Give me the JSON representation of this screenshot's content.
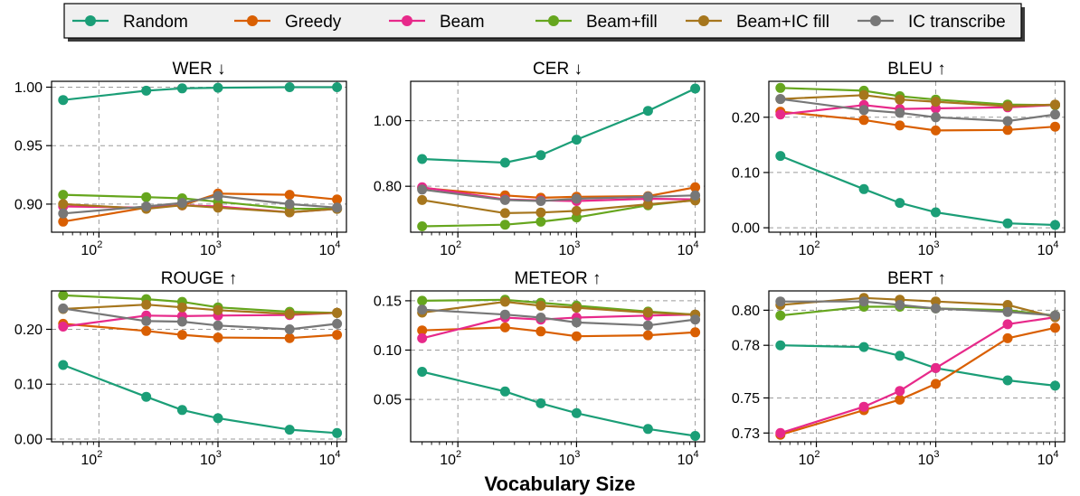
{
  "legend": {
    "location": "top",
    "entries": [
      {
        "name": "Random",
        "color": "#1b9e77"
      },
      {
        "name": "Greedy",
        "color": "#d95f02"
      },
      {
        "name": "Beam",
        "color": "#e7298a"
      },
      {
        "name": "Beam+fill",
        "color": "#66a61e"
      },
      {
        "name": "Beam+IC fill",
        "color": "#a6761d"
      },
      {
        "name": "IC transcribe",
        "color": "#777777"
      }
    ]
  },
  "xlabel": "Vocabulary Size",
  "chart_data": [
    {
      "type": "line",
      "title": "WER ↓",
      "xscale": "log",
      "xlim": [
        40,
        12000
      ],
      "ylim": [
        0.876,
        1.005
      ],
      "yticks": [
        0.9,
        0.95,
        1.0
      ],
      "ytick_labels": [
        "0.90",
        "0.95",
        "1.00"
      ],
      "xticks": [
        100,
        1000,
        10000
      ],
      "xtick_labels": [
        "10",
        "10",
        "10"
      ],
      "xtick_exponents": [
        "2",
        "3",
        "4"
      ],
      "x": [
        50,
        250,
        500,
        1000,
        4000,
        10000
      ],
      "grid": true,
      "series": [
        {
          "name": "Random",
          "color": "#1b9e77",
          "values": [
            0.989,
            0.997,
            0.999,
            0.9995,
            1.0,
            1.0
          ]
        },
        {
          "name": "Greedy",
          "color": "#d95f02",
          "values": [
            0.885,
            0.897,
            0.899,
            0.909,
            0.908,
            0.904
          ]
        },
        {
          "name": "Beam",
          "color": "#e7298a",
          "values": [
            0.898,
            0.897,
            0.899,
            0.898,
            0.893,
            0.896
          ]
        },
        {
          "name": "Beam+fill",
          "color": "#66a61e",
          "values": [
            0.908,
            0.906,
            0.905,
            0.902,
            0.896,
            0.896
          ]
        },
        {
          "name": "Beam+IC fill",
          "color": "#a6761d",
          "values": [
            0.9,
            0.896,
            0.899,
            0.897,
            0.893,
            0.896
          ]
        },
        {
          "name": "IC transcribe",
          "color": "#777777",
          "values": [
            0.892,
            0.898,
            0.901,
            0.907,
            0.9,
            0.897
          ]
        }
      ]
    },
    {
      "type": "line",
      "title": "CER ↓",
      "xscale": "log",
      "xlim": [
        40,
        12000
      ],
      "ylim": [
        0.66,
        1.12
      ],
      "yticks": [
        0.8,
        1.0
      ],
      "ytick_labels": [
        "0.80",
        "1.00"
      ],
      "xticks": [
        100,
        1000,
        10000
      ],
      "xtick_labels": [
        "10",
        "10",
        "10"
      ],
      "xtick_exponents": [
        "2",
        "3",
        "4"
      ],
      "x": [
        50,
        250,
        500,
        1000,
        4000,
        10000
      ],
      "grid": true,
      "series": [
        {
          "name": "Random",
          "color": "#1b9e77",
          "values": [
            0.883,
            0.872,
            0.895,
            0.942,
            1.03,
            1.098
          ]
        },
        {
          "name": "Greedy",
          "color": "#d95f02",
          "values": [
            0.795,
            0.772,
            0.765,
            0.768,
            0.77,
            0.797
          ]
        },
        {
          "name": "Beam",
          "color": "#e7298a",
          "values": [
            0.797,
            0.76,
            0.757,
            0.755,
            0.762,
            0.76
          ]
        },
        {
          "name": "Beam+fill",
          "color": "#66a61e",
          "values": [
            0.678,
            0.683,
            0.692,
            0.705,
            0.742,
            0.758
          ]
        },
        {
          "name": "Beam+IC fill",
          "color": "#a6761d",
          "values": [
            0.758,
            0.718,
            0.72,
            0.725,
            0.745,
            0.757
          ]
        },
        {
          "name": "IC transcribe",
          "color": "#777777",
          "values": [
            0.79,
            0.758,
            0.755,
            0.762,
            0.768,
            0.772
          ]
        }
      ]
    },
    {
      "type": "line",
      "title": "BLEU ↑",
      "xscale": "log",
      "xlim": [
        40,
        12000
      ],
      "ylim": [
        -0.008,
        0.265
      ],
      "yticks": [
        0.0,
        0.1,
        0.2
      ],
      "ytick_labels": [
        "0.00",
        "0.10",
        "0.20"
      ],
      "xticks": [
        100,
        1000,
        10000
      ],
      "xtick_labels": [
        "10",
        "10",
        "10"
      ],
      "xtick_exponents": [
        "2",
        "3",
        "4"
      ],
      "x": [
        50,
        250,
        500,
        1000,
        4000,
        10000
      ],
      "grid": true,
      "series": [
        {
          "name": "Random",
          "color": "#1b9e77",
          "values": [
            0.13,
            0.07,
            0.045,
            0.028,
            0.008,
            0.005
          ]
        },
        {
          "name": "Greedy",
          "color": "#d95f02",
          "values": [
            0.21,
            0.195,
            0.185,
            0.176,
            0.177,
            0.183
          ]
        },
        {
          "name": "Beam",
          "color": "#e7298a",
          "values": [
            0.205,
            0.222,
            0.215,
            0.216,
            0.218,
            0.222
          ]
        },
        {
          "name": "Beam+fill",
          "color": "#66a61e",
          "values": [
            0.253,
            0.248,
            0.238,
            0.232,
            0.223,
            0.222
          ]
        },
        {
          "name": "Beam+IC fill",
          "color": "#a6761d",
          "values": [
            0.233,
            0.24,
            0.232,
            0.228,
            0.22,
            0.223
          ]
        },
        {
          "name": "IC transcribe",
          "color": "#777777",
          "values": [
            0.233,
            0.213,
            0.208,
            0.2,
            0.193,
            0.205
          ]
        }
      ]
    },
    {
      "type": "line",
      "title": "ROUGE ↑",
      "xscale": "log",
      "xlim": [
        40,
        12000
      ],
      "ylim": [
        -0.005,
        0.27
      ],
      "yticks": [
        0.0,
        0.1,
        0.2
      ],
      "ytick_labels": [
        "0.00",
        "0.10",
        "0.20"
      ],
      "xticks": [
        100,
        1000,
        10000
      ],
      "xtick_labels": [
        "10",
        "10",
        "10"
      ],
      "xtick_exponents": [
        "2",
        "3",
        "4"
      ],
      "x": [
        50,
        250,
        500,
        1000,
        4000,
        10000
      ],
      "grid": true,
      "series": [
        {
          "name": "Random",
          "color": "#1b9e77",
          "values": [
            0.135,
            0.077,
            0.053,
            0.038,
            0.017,
            0.011
          ]
        },
        {
          "name": "Greedy",
          "color": "#d95f02",
          "values": [
            0.21,
            0.197,
            0.19,
            0.185,
            0.184,
            0.19
          ]
        },
        {
          "name": "Beam",
          "color": "#e7298a",
          "values": [
            0.205,
            0.225,
            0.224,
            0.225,
            0.226,
            0.23
          ]
        },
        {
          "name": "Beam+fill",
          "color": "#66a61e",
          "values": [
            0.262,
            0.255,
            0.25,
            0.24,
            0.232,
            0.23
          ]
        },
        {
          "name": "Beam+IC fill",
          "color": "#a6761d",
          "values": [
            0.237,
            0.245,
            0.24,
            0.235,
            0.228,
            0.23
          ]
        },
        {
          "name": "IC transcribe",
          "color": "#777777",
          "values": [
            0.238,
            0.215,
            0.214,
            0.207,
            0.2,
            0.21
          ]
        }
      ]
    },
    {
      "type": "line",
      "title": "METEOR ↑",
      "xscale": "log",
      "xlim": [
        40,
        12000
      ],
      "ylim": [
        0.007,
        0.16
      ],
      "yticks": [
        0.05,
        0.1,
        0.15
      ],
      "ytick_labels": [
        "0.05",
        "0.10",
        "0.15"
      ],
      "xticks": [
        100,
        1000,
        10000
      ],
      "xtick_labels": [
        "10",
        "10",
        "10"
      ],
      "xtick_exponents": [
        "2",
        "3",
        "4"
      ],
      "x": [
        50,
        250,
        500,
        1000,
        4000,
        10000
      ],
      "grid": true,
      "series": [
        {
          "name": "Random",
          "color": "#1b9e77",
          "values": [
            0.078,
            0.058,
            0.046,
            0.036,
            0.02,
            0.013
          ]
        },
        {
          "name": "Greedy",
          "color": "#d95f02",
          "values": [
            0.12,
            0.123,
            0.119,
            0.114,
            0.115,
            0.118
          ]
        },
        {
          "name": "Beam",
          "color": "#e7298a",
          "values": [
            0.112,
            0.133,
            0.131,
            0.133,
            0.135,
            0.136
          ]
        },
        {
          "name": "Beam+fill",
          "color": "#66a61e",
          "values": [
            0.15,
            0.151,
            0.148,
            0.145,
            0.139,
            0.136
          ]
        },
        {
          "name": "Beam+IC fill",
          "color": "#a6761d",
          "values": [
            0.138,
            0.149,
            0.145,
            0.143,
            0.138,
            0.136
          ]
        },
        {
          "name": "IC transcribe",
          "color": "#777777",
          "values": [
            0.141,
            0.136,
            0.133,
            0.128,
            0.125,
            0.131
          ]
        }
      ]
    },
    {
      "type": "line",
      "title": "BERT ↑",
      "xscale": "log",
      "xlim": [
        40,
        12000
      ],
      "ylim": [
        0.725,
        0.811
      ],
      "yticks": [
        0.73,
        0.75,
        0.78,
        0.8
      ],
      "ytick_labels": [
        "0.73",
        "0.75",
        "0.78",
        "0.80"
      ],
      "xticks": [
        100,
        1000,
        10000
      ],
      "xtick_labels": [
        "10",
        "10",
        "10"
      ],
      "xtick_exponents": [
        "2",
        "3",
        "4"
      ],
      "x": [
        50,
        250,
        500,
        1000,
        4000,
        10000
      ],
      "grid": true,
      "series": [
        {
          "name": "Random",
          "color": "#1b9e77",
          "values": [
            0.78,
            0.779,
            0.774,
            0.767,
            0.76,
            0.757
          ]
        },
        {
          "name": "Greedy",
          "color": "#d95f02",
          "values": [
            0.729,
            0.743,
            0.749,
            0.758,
            0.784,
            0.79
          ]
        },
        {
          "name": "Beam",
          "color": "#e7298a",
          "values": [
            0.73,
            0.745,
            0.754,
            0.767,
            0.792,
            0.796
          ]
        },
        {
          "name": "Beam+fill",
          "color": "#66a61e",
          "values": [
            0.797,
            0.802,
            0.802,
            0.801,
            0.8,
            0.797
          ]
        },
        {
          "name": "Beam+IC fill",
          "color": "#a6761d",
          "values": [
            0.803,
            0.807,
            0.806,
            0.805,
            0.803,
            0.796
          ]
        },
        {
          "name": "IC transcribe",
          "color": "#777777",
          "values": [
            0.805,
            0.805,
            0.803,
            0.801,
            0.799,
            0.797
          ]
        }
      ]
    }
  ]
}
